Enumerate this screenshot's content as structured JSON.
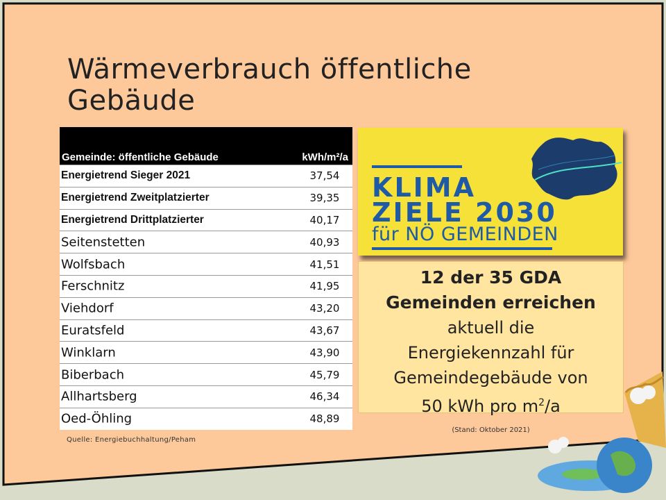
{
  "title_line1": "Wärmeverbrauch öffentliche",
  "title_line2": "Gebäude",
  "table": {
    "header_name": "Gemeinde: öffentliche Gebäude",
    "header_value": "kWh/m²/a",
    "rows": [
      {
        "name": "Energietrend Sieger 2021",
        "value": "37,54",
        "bold": true
      },
      {
        "name": "Energietrend Zweitplatzierter",
        "value": "39,35",
        "bold": true
      },
      {
        "name": "Energietrend Drittplatzierter",
        "value": "40,17",
        "bold": true
      },
      {
        "name": "Seitenstetten",
        "value": "40,93",
        "bold": false
      },
      {
        "name": "Wolfsbach",
        "value": "41,51",
        "bold": false
      },
      {
        "name": "Ferschnitz",
        "value": "41,95",
        "bold": false
      },
      {
        "name": "Viehdorf",
        "value": "43,20",
        "bold": false
      },
      {
        "name": "Euratsfeld",
        "value": "43,67",
        "bold": false
      },
      {
        "name": "Winklarn",
        "value": "43,90",
        "bold": false
      },
      {
        "name": "Biberbach",
        "value": "45,79",
        "bold": false
      },
      {
        "name": "Allhartsberg",
        "value": "46,34",
        "bold": false
      },
      {
        "name": "Oed-Öhling",
        "value": "48,89",
        "bold": false
      }
    ]
  },
  "source": "Quelle: Energiebuchhaltung/Peham",
  "promo": {
    "line1": "KLIMA",
    "line2": "ZIELE 2030",
    "line3": "für NÖ GEMEINDEN"
  },
  "note": {
    "bold1": "12 der 35 GDA",
    "bold2": "Gemeinden erreichen",
    "l3": "aktuell die",
    "l4": "Energiekennzahl für",
    "l5": "Gemeindegebäude von",
    "l6_pre": "50 kWh pro m",
    "l6_sup": "2",
    "l6_post": "/a",
    "stand": "(Stand: Oktober 2021)"
  },
  "colors": {
    "slide": "#fdc89a",
    "promo_bg": "#f6e139",
    "promo_text": "#1f5aa6",
    "note_bg": "#ffe5a0"
  }
}
